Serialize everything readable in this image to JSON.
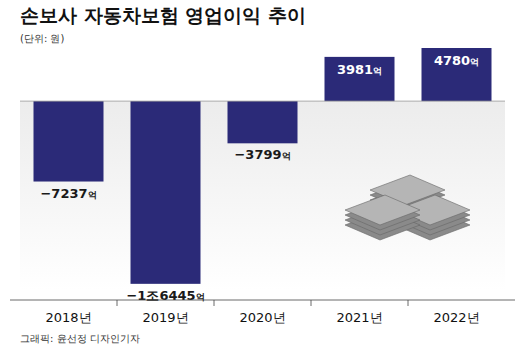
{
  "chart_data": {
    "type": "bar",
    "title": "손보사 자동차보험 영업이익 추이",
    "subtitle": "(단위: 원)",
    "source": "그래픽: 윤선정 디자인기자",
    "categories": [
      "2018년",
      "2019년",
      "2020년",
      "2021년",
      "2022년"
    ],
    "values": [
      -7237,
      -16445,
      -3799,
      3981,
      4780
    ],
    "value_labels": [
      "−7237억",
      "−1조6445억",
      "−3799억",
      "3981억",
      "4780억"
    ],
    "color": "#2b2a78",
    "ylim": [
      -17000,
      5500
    ],
    "grid": false,
    "data_labels": true,
    "tick_labels": "x"
  }
}
